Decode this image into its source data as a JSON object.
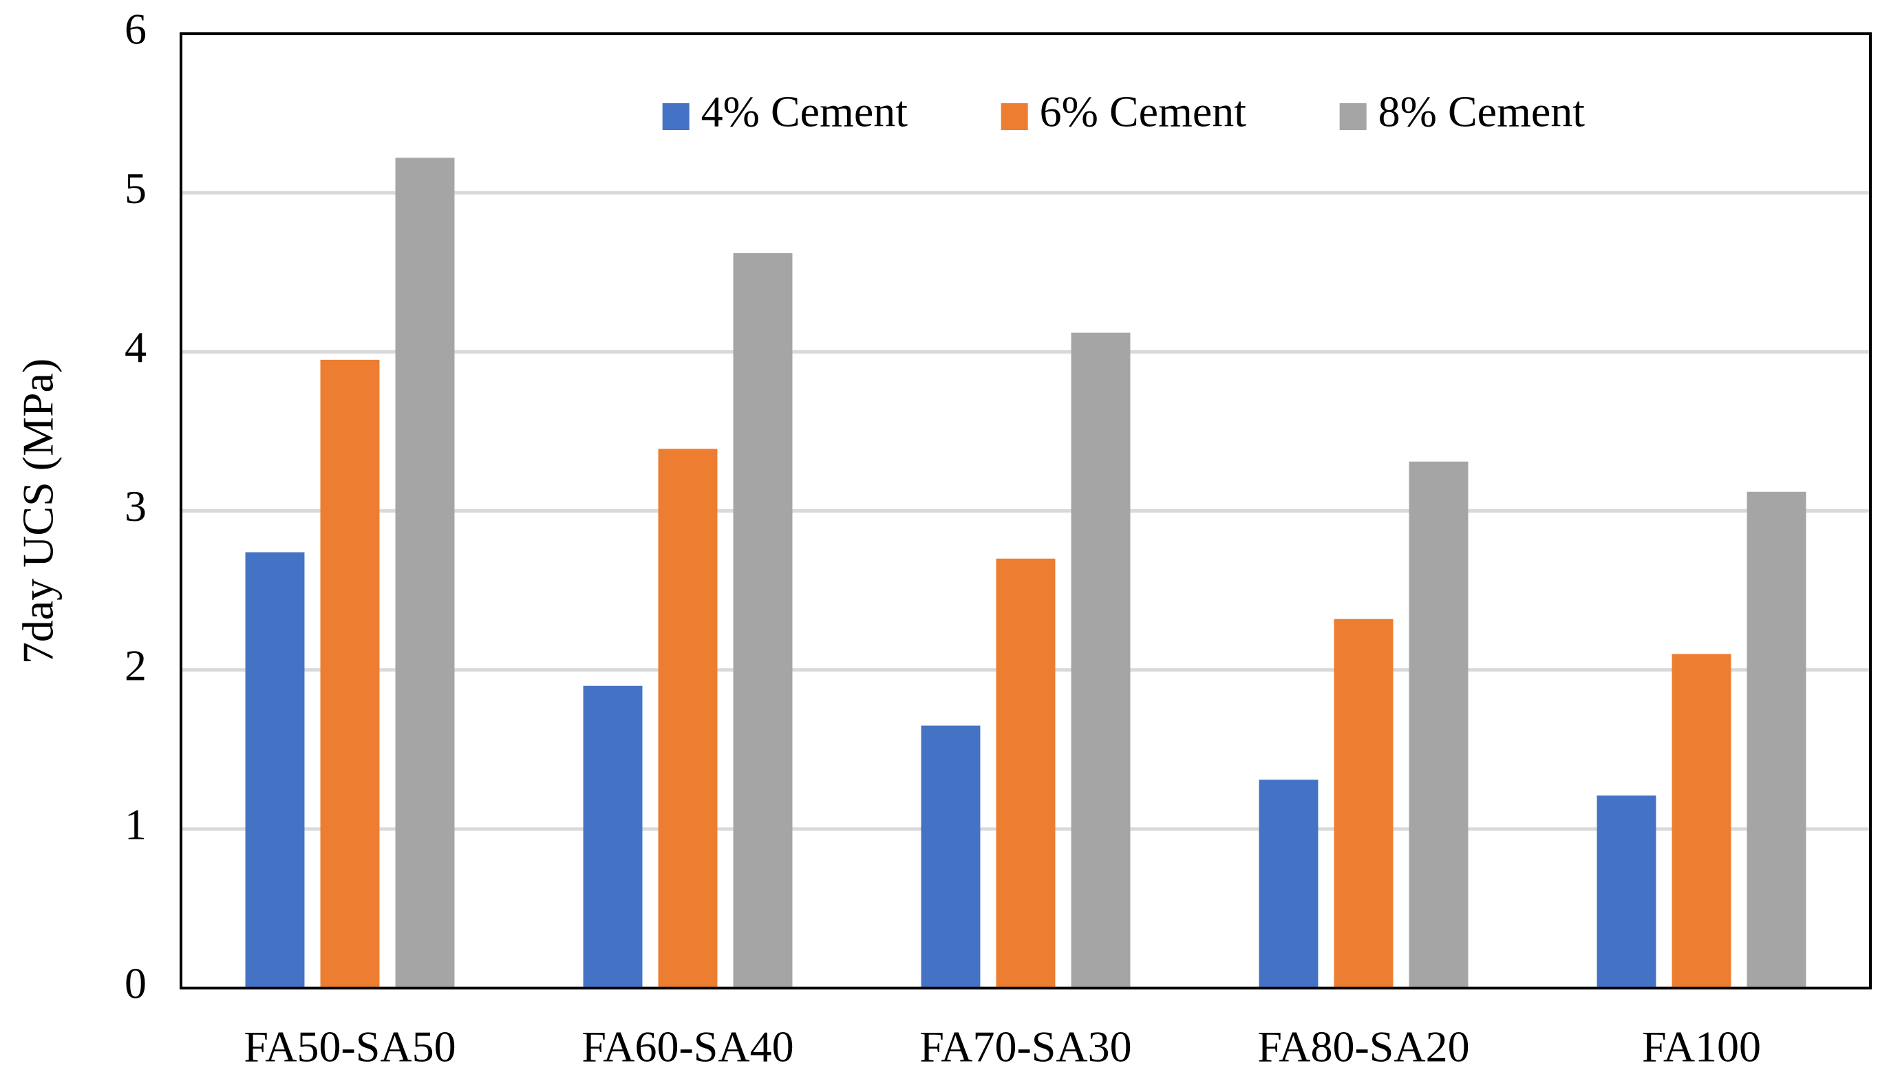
{
  "chart_data": {
    "type": "bar",
    "y_label": "7day UCS (MPa)",
    "categories": [
      "FA50-SA50",
      "FA60-SA40",
      "FA70-SA30",
      "FA80-SA20",
      "FA100"
    ],
    "series": [
      {
        "name": "4% Cement",
        "color": "#4472c4",
        "values": [
          2.74,
          1.9,
          1.65,
          1.31,
          1.21
        ]
      },
      {
        "name": "6% Cement",
        "color": "#ed7d31",
        "values": [
          3.95,
          3.39,
          2.7,
          2.32,
          2.1
        ]
      },
      {
        "name": "8% Cement",
        "color": "#a5a5a5",
        "values": [
          5.22,
          4.62,
          4.12,
          3.31,
          3.12
        ]
      }
    ],
    "ylim": [
      0,
      6
    ],
    "yticks": [
      0,
      1,
      2,
      3,
      4,
      5,
      6
    ],
    "grid": true,
    "legend": "top"
  }
}
